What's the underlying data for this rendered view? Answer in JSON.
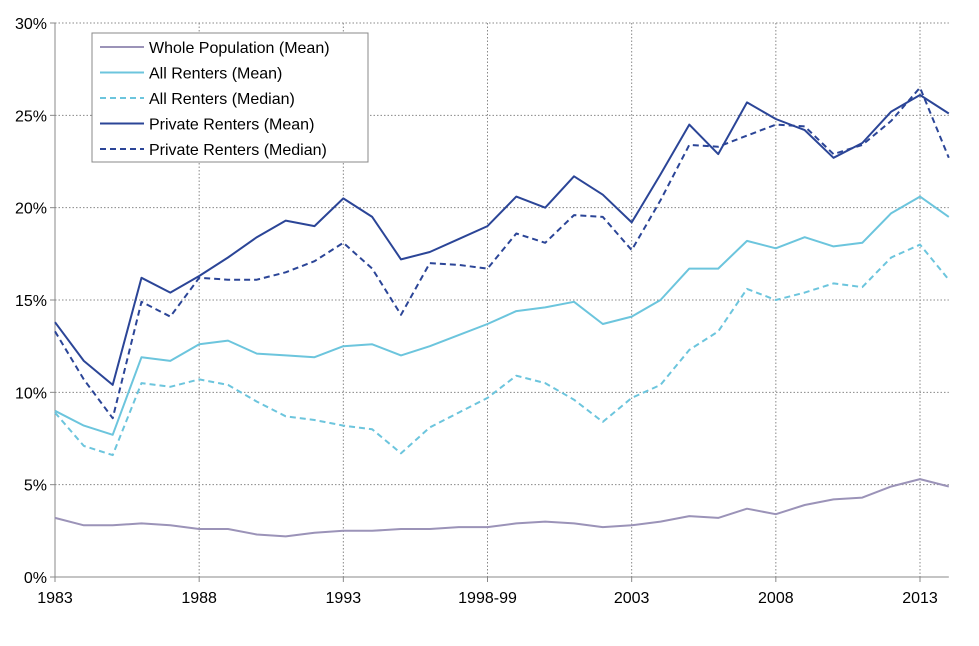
{
  "chart_data": {
    "type": "line",
    "title": "",
    "xlabel": "",
    "ylabel": "",
    "ylim": [
      0,
      30
    ],
    "y_ticks": [
      "0%",
      "5%",
      "10%",
      "15%",
      "20%",
      "25%",
      "30%"
    ],
    "y_tick_values": [
      0,
      5,
      10,
      15,
      20,
      25,
      30
    ],
    "x_tick_labels": [
      {
        "index": 0,
        "label": "1983"
      },
      {
        "index": 5,
        "label": "1988"
      },
      {
        "index": 10,
        "label": "1993"
      },
      {
        "index": 15,
        "label": "1998-99"
      },
      {
        "index": 20,
        "label": "2003"
      },
      {
        "index": 25,
        "label": "2008"
      },
      {
        "index": 30,
        "label": "2013"
      }
    ],
    "grid": true,
    "legend_position": "top-left",
    "series": [
      {
        "name": "Whole Population (Mean)",
        "color": "#9b93b8",
        "dashed": false,
        "values": [
          3.2,
          2.8,
          2.8,
          2.9,
          2.8,
          2.6,
          2.6,
          2.3,
          2.2,
          2.4,
          2.5,
          2.5,
          2.6,
          2.6,
          2.7,
          2.7,
          2.9,
          3.0,
          2.9,
          2.7,
          2.8,
          3.0,
          3.3,
          3.2,
          3.7,
          3.4,
          3.9,
          4.2,
          4.3,
          4.9,
          5.3,
          4.9
        ]
      },
      {
        "name": "All Renters (Mean)",
        "color": "#6cc5dd",
        "dashed": false,
        "values": [
          9.0,
          8.2,
          7.7,
          11.9,
          11.7,
          12.6,
          12.8,
          12.1,
          12.0,
          11.9,
          12.5,
          12.6,
          12.0,
          12.5,
          13.1,
          13.7,
          14.4,
          14.6,
          14.9,
          13.7,
          14.1,
          15.0,
          16.7,
          16.7,
          18.2,
          17.8,
          18.4,
          17.9,
          18.1,
          19.7,
          20.6,
          19.5
        ]
      },
      {
        "name": "All Renters (Median)",
        "color": "#6cc5dd",
        "dashed": true,
        "values": [
          8.9,
          7.1,
          6.6,
          10.5,
          10.3,
          10.7,
          10.4,
          9.5,
          8.7,
          8.5,
          8.2,
          8.0,
          6.7,
          8.1,
          8.9,
          9.7,
          10.9,
          10.5,
          9.6,
          8.4,
          9.7,
          10.4,
          12.3,
          13.3,
          15.6,
          15.0,
          15.4,
          15.9,
          15.7,
          17.3,
          18.0,
          16.1
        ]
      },
      {
        "name": "Private Renters (Mean)",
        "color": "#2b4597",
        "dashed": false,
        "values": [
          13.8,
          11.7,
          10.4,
          16.2,
          15.4,
          16.3,
          17.3,
          18.4,
          19.3,
          19.0,
          20.5,
          19.5,
          17.2,
          17.6,
          18.3,
          19.0,
          20.6,
          20.0,
          21.7,
          20.7,
          19.2,
          21.8,
          24.5,
          22.9,
          25.7,
          24.8,
          24.2,
          22.7,
          23.5,
          25.2,
          26.1,
          25.1
        ]
      },
      {
        "name": "Private Renters (Median)",
        "color": "#2b4597",
        "dashed": true,
        "values": [
          13.3,
          10.7,
          8.6,
          14.9,
          14.1,
          16.2,
          16.1,
          16.1,
          16.5,
          17.1,
          18.1,
          16.7,
          14.2,
          17.0,
          16.9,
          16.7,
          18.6,
          18.1,
          19.6,
          19.5,
          17.7,
          20.4,
          23.4,
          23.3,
          23.9,
          24.5,
          24.4,
          22.9,
          23.4,
          24.7,
          26.5,
          22.7
        ]
      }
    ]
  }
}
